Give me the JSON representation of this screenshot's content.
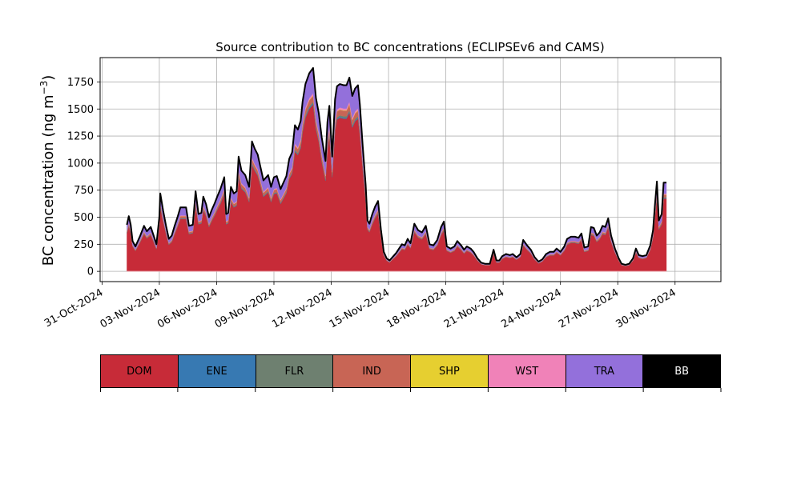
{
  "chart_data": {
    "type": "area",
    "stacked": true,
    "title": "Source contribution to BC concentrations (ECLIPSEv6 and CAMS)",
    "ylabel_main": "BC concentration (ng m",
    "ylabel_sup": "−3",
    "ylabel_close": ")",
    "ylim": [
      -95,
      1975
    ],
    "yticks": [
      0,
      250,
      500,
      750,
      1000,
      1250,
      1500,
      1750
    ],
    "xlim": [
      -0.1,
      32.4
    ],
    "xticks": [
      {
        "x": 0,
        "label": "31-Oct-2024"
      },
      {
        "x": 3,
        "label": "03-Nov-2024"
      },
      {
        "x": 6,
        "label": "06-Nov-2024"
      },
      {
        "x": 9,
        "label": "09-Nov-2024"
      },
      {
        "x": 12,
        "label": "12-Nov-2024"
      },
      {
        "x": 15,
        "label": "15-Nov-2024"
      },
      {
        "x": 18,
        "label": "18-Nov-2024"
      },
      {
        "x": 21,
        "label": "21-Nov-2024"
      },
      {
        "x": 24,
        "label": "24-Nov-2024"
      },
      {
        "x": 27,
        "label": "27-Nov-2024"
      },
      {
        "x": 30,
        "label": "30-Nov-2024"
      }
    ],
    "grid": true,
    "x_unit": "days since 31-Oct-2024",
    "total": [
      [
        1.3,
        430
      ],
      [
        1.4,
        510
      ],
      [
        1.5,
        430
      ],
      [
        1.6,
        280
      ],
      [
        1.75,
        230
      ],
      [
        2.0,
        330
      ],
      [
        2.2,
        420
      ],
      [
        2.35,
        370
      ],
      [
        2.55,
        410
      ],
      [
        2.7,
        330
      ],
      [
        2.85,
        250
      ],
      [
        3.0,
        500
      ],
      [
        3.05,
        720
      ],
      [
        3.2,
        560
      ],
      [
        3.35,
        420
      ],
      [
        3.5,
        300
      ],
      [
        3.65,
        330
      ],
      [
        3.8,
        420
      ],
      [
        3.95,
        500
      ],
      [
        4.1,
        590
      ],
      [
        4.4,
        590
      ],
      [
        4.55,
        420
      ],
      [
        4.75,
        430
      ],
      [
        4.9,
        740
      ],
      [
        5.05,
        530
      ],
      [
        5.2,
        540
      ],
      [
        5.3,
        690
      ],
      [
        5.45,
        620
      ],
      [
        5.6,
        500
      ],
      [
        5.75,
        570
      ],
      [
        5.9,
        630
      ],
      [
        6.05,
        700
      ],
      [
        6.2,
        760
      ],
      [
        6.4,
        870
      ],
      [
        6.5,
        530
      ],
      [
        6.6,
        540
      ],
      [
        6.75,
        780
      ],
      [
        6.9,
        720
      ],
      [
        7.05,
        740
      ],
      [
        7.15,
        1060
      ],
      [
        7.3,
        930
      ],
      [
        7.5,
        890
      ],
      [
        7.7,
        780
      ],
      [
        7.85,
        1200
      ],
      [
        8.0,
        1130
      ],
      [
        8.15,
        1080
      ],
      [
        8.3,
        960
      ],
      [
        8.45,
        840
      ],
      [
        8.55,
        860
      ],
      [
        8.7,
        890
      ],
      [
        8.85,
        780
      ],
      [
        9.0,
        870
      ],
      [
        9.15,
        880
      ],
      [
        9.35,
        760
      ],
      [
        9.5,
        820
      ],
      [
        9.65,
        880
      ],
      [
        9.8,
        1040
      ],
      [
        9.95,
        1100
      ],
      [
        10.1,
        1350
      ],
      [
        10.25,
        1310
      ],
      [
        10.4,
        1390
      ],
      [
        10.5,
        1570
      ],
      [
        10.65,
        1730
      ],
      [
        10.85,
        1830
      ],
      [
        11.05,
        1880
      ],
      [
        11.2,
        1600
      ],
      [
        11.35,
        1460
      ],
      [
        11.5,
        1240
      ],
      [
        11.7,
        1020
      ],
      [
        11.8,
        1380
      ],
      [
        11.9,
        1530
      ],
      [
        12.05,
        1060
      ],
      [
        12.2,
        1590
      ],
      [
        12.3,
        1710
      ],
      [
        12.45,
        1730
      ],
      [
        12.65,
        1720
      ],
      [
        12.8,
        1720
      ],
      [
        12.95,
        1790
      ],
      [
        13.1,
        1620
      ],
      [
        13.25,
        1690
      ],
      [
        13.4,
        1720
      ],
      [
        13.5,
        1540
      ],
      [
        13.65,
        1150
      ],
      [
        13.8,
        800
      ],
      [
        13.9,
        470
      ],
      [
        14.0,
        440
      ],
      [
        14.15,
        530
      ],
      [
        14.3,
        600
      ],
      [
        14.45,
        650
      ],
      [
        14.6,
        390
      ],
      [
        14.75,
        180
      ],
      [
        14.9,
        120
      ],
      [
        15.05,
        100
      ],
      [
        15.2,
        130
      ],
      [
        15.4,
        170
      ],
      [
        15.55,
        210
      ],
      [
        15.7,
        250
      ],
      [
        15.85,
        240
      ],
      [
        16.0,
        300
      ],
      [
        16.15,
        260
      ],
      [
        16.35,
        440
      ],
      [
        16.55,
        380
      ],
      [
        16.75,
        360
      ],
      [
        16.95,
        420
      ],
      [
        17.15,
        250
      ],
      [
        17.35,
        240
      ],
      [
        17.55,
        290
      ],
      [
        17.75,
        410
      ],
      [
        17.9,
        460
      ],
      [
        18.05,
        230
      ],
      [
        18.25,
        210
      ],
      [
        18.45,
        230
      ],
      [
        18.6,
        280
      ],
      [
        18.8,
        240
      ],
      [
        18.95,
        200
      ],
      [
        19.1,
        230
      ],
      [
        19.3,
        210
      ],
      [
        19.45,
        180
      ],
      [
        19.65,
        120
      ],
      [
        19.85,
        80
      ],
      [
        20.05,
        70
      ],
      [
        20.3,
        70
      ],
      [
        20.5,
        200
      ],
      [
        20.65,
        100
      ],
      [
        20.8,
        100
      ],
      [
        20.95,
        140
      ],
      [
        21.15,
        160
      ],
      [
        21.35,
        150
      ],
      [
        21.5,
        160
      ],
      [
        21.7,
        130
      ],
      [
        21.9,
        160
      ],
      [
        22.05,
        290
      ],
      [
        22.25,
        240
      ],
      [
        22.45,
        200
      ],
      [
        22.65,
        130
      ],
      [
        22.85,
        90
      ],
      [
        23.05,
        110
      ],
      [
        23.25,
        160
      ],
      [
        23.45,
        180
      ],
      [
        23.65,
        180
      ],
      [
        23.8,
        210
      ],
      [
        24.0,
        180
      ],
      [
        24.2,
        230
      ],
      [
        24.35,
        300
      ],
      [
        24.55,
        320
      ],
      [
        24.75,
        320
      ],
      [
        24.95,
        310
      ],
      [
        25.1,
        350
      ],
      [
        25.25,
        220
      ],
      [
        25.45,
        230
      ],
      [
        25.6,
        410
      ],
      [
        25.75,
        400
      ],
      [
        25.9,
        330
      ],
      [
        26.05,
        360
      ],
      [
        26.2,
        420
      ],
      [
        26.35,
        410
      ],
      [
        26.5,
        490
      ],
      [
        26.65,
        330
      ],
      [
        26.85,
        210
      ],
      [
        27.05,
        120
      ],
      [
        27.2,
        70
      ],
      [
        27.4,
        60
      ],
      [
        27.6,
        70
      ],
      [
        27.8,
        120
      ],
      [
        27.95,
        210
      ],
      [
        28.1,
        150
      ],
      [
        28.3,
        140
      ],
      [
        28.5,
        150
      ],
      [
        28.7,
        240
      ],
      [
        28.85,
        380
      ],
      [
        28.95,
        620
      ],
      [
        29.05,
        830
      ],
      [
        29.15,
        470
      ],
      [
        29.3,
        530
      ],
      [
        29.4,
        820
      ],
      [
        29.55,
        820
      ]
    ],
    "series": [
      {
        "name": "DOM",
        "color": "#c72b38",
        "share": 0.82
      },
      {
        "name": "ENE",
        "color": "#3779b2",
        "share": 0.005
      },
      {
        "name": "FLR",
        "color": "#6e8070",
        "share": 0.008
      },
      {
        "name": "IND",
        "color": "#c86555",
        "share": 0.03
      },
      {
        "name": "SHP",
        "color": "#e6cf30",
        "share": 0.002
      },
      {
        "name": "WST",
        "color": "#f082b8",
        "share": 0.01
      },
      {
        "name": "TRA",
        "color": "#9370db",
        "share": 0.125
      },
      {
        "name": "BB",
        "color": "#000000",
        "share": 0.0
      }
    ]
  },
  "legend": [
    {
      "label": "DOM",
      "color": "#c72b38",
      "text_color": "#000000"
    },
    {
      "label": "ENE",
      "color": "#3779b2",
      "text_color": "#000000"
    },
    {
      "label": "FLR",
      "color": "#6e8070",
      "text_color": "#000000"
    },
    {
      "label": "IND",
      "color": "#c86555",
      "text_color": "#000000"
    },
    {
      "label": "SHP",
      "color": "#e6cf30",
      "text_color": "#000000"
    },
    {
      "label": "WST",
      "color": "#f082b8",
      "text_color": "#000000"
    },
    {
      "label": "TRA",
      "color": "#9370db",
      "text_color": "#000000"
    },
    {
      "label": "BB",
      "color": "#000000",
      "text_color": "#ffffff"
    }
  ]
}
